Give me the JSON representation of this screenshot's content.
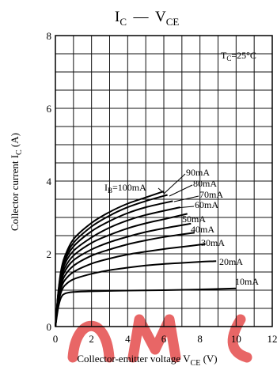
{
  "chart_data": {
    "type": "line",
    "title": {
      "main": "I",
      "main_sub": "C",
      "dash": " — ",
      "second": "V",
      "second_sub": "CE"
    },
    "xlabel": {
      "text": "Collector-emitter voltage  V",
      "sub": "CE",
      "unit": "  (V)"
    },
    "ylabel": {
      "text": "Collector current  I",
      "sub": "C",
      "unit": "  (A)"
    },
    "xlim": [
      0,
      12
    ],
    "ylim": [
      0,
      8
    ],
    "xticks": [
      0,
      2,
      4,
      6,
      8,
      10,
      12
    ],
    "yticks": [
      0,
      2,
      4,
      6,
      8
    ],
    "grid": "on",
    "annotation": {
      "text": "T",
      "sub": "C",
      "rest": "=25°C"
    },
    "series": [
      {
        "name": "I_B=100mA",
        "label": "I",
        "label_sub": "B",
        "label_rest": "=100mA",
        "x": [
          0,
          0.15,
          0.3,
          0.5,
          1,
          2,
          3,
          4,
          5,
          6
        ],
        "y": [
          0,
          0.9,
          1.5,
          1.9,
          2.4,
          2.85,
          3.15,
          3.38,
          3.55,
          3.72
        ]
      },
      {
        "name": "90mA",
        "label": "90mA",
        "x": [
          0,
          0.15,
          0.3,
          0.5,
          1,
          2,
          3,
          4,
          5,
          6.2
        ],
        "y": [
          0,
          0.88,
          1.45,
          1.85,
          2.3,
          2.75,
          3.05,
          3.28,
          3.45,
          3.62
        ]
      },
      {
        "name": "80mA",
        "label": "80mA",
        "x": [
          0,
          0.15,
          0.3,
          0.5,
          1,
          2,
          3,
          4,
          5,
          6.5
        ],
        "y": [
          0,
          0.86,
          1.4,
          1.78,
          2.2,
          2.62,
          2.9,
          3.12,
          3.28,
          3.45
        ]
      },
      {
        "name": "70mA",
        "label": "70mA",
        "x": [
          0,
          0.15,
          0.3,
          0.5,
          1,
          2,
          3,
          4,
          5,
          6.9
        ],
        "y": [
          0,
          0.83,
          1.35,
          1.7,
          2.08,
          2.45,
          2.72,
          2.92,
          3.07,
          3.28
        ]
      },
      {
        "name": "60mA",
        "label": "60mA",
        "x": [
          0,
          0.15,
          0.3,
          0.5,
          1,
          2,
          3,
          4,
          5,
          6,
          7.3
        ],
        "y": [
          0,
          0.8,
          1.28,
          1.6,
          1.95,
          2.3,
          2.52,
          2.7,
          2.84,
          2.95,
          3.1
        ]
      },
      {
        "name": "50mA",
        "label": "50mA",
        "x": [
          0,
          0.15,
          0.3,
          0.5,
          1,
          2,
          3,
          4,
          5,
          6,
          7.5
        ],
        "y": [
          0,
          0.76,
          1.2,
          1.5,
          1.82,
          2.12,
          2.32,
          2.47,
          2.6,
          2.7,
          2.83
        ]
      },
      {
        "name": "40mA",
        "label": "40mA",
        "x": [
          0,
          0.15,
          0.3,
          0.5,
          1,
          2,
          3,
          4,
          5,
          6,
          7.7
        ],
        "y": [
          0,
          0.7,
          1.1,
          1.38,
          1.67,
          1.95,
          2.12,
          2.26,
          2.37,
          2.46,
          2.58
        ]
      },
      {
        "name": "30mA",
        "label": "30mA",
        "x": [
          0,
          0.15,
          0.3,
          0.5,
          1,
          2,
          3,
          4,
          5,
          6,
          7,
          8.3
        ],
        "y": [
          0,
          0.66,
          1.02,
          1.26,
          1.5,
          1.73,
          1.87,
          1.98,
          2.06,
          2.13,
          2.19,
          2.27
        ]
      },
      {
        "name": "20mA",
        "label": "20mA",
        "x": [
          0,
          0.15,
          0.3,
          0.5,
          1,
          2,
          3,
          4,
          5,
          6,
          7,
          8,
          8.9
        ],
        "y": [
          0,
          0.6,
          0.92,
          1.12,
          1.3,
          1.45,
          1.55,
          1.62,
          1.68,
          1.72,
          1.75,
          1.78,
          1.8
        ]
      },
      {
        "name": "10mA",
        "label": "10mA",
        "x": [
          0,
          0.15,
          0.3,
          0.5,
          1,
          2,
          4,
          6,
          8,
          10
        ],
        "y": [
          0,
          0.5,
          0.78,
          0.9,
          0.95,
          0.97,
          0.99,
          1.0,
          1.02,
          1.05
        ]
      }
    ]
  }
}
